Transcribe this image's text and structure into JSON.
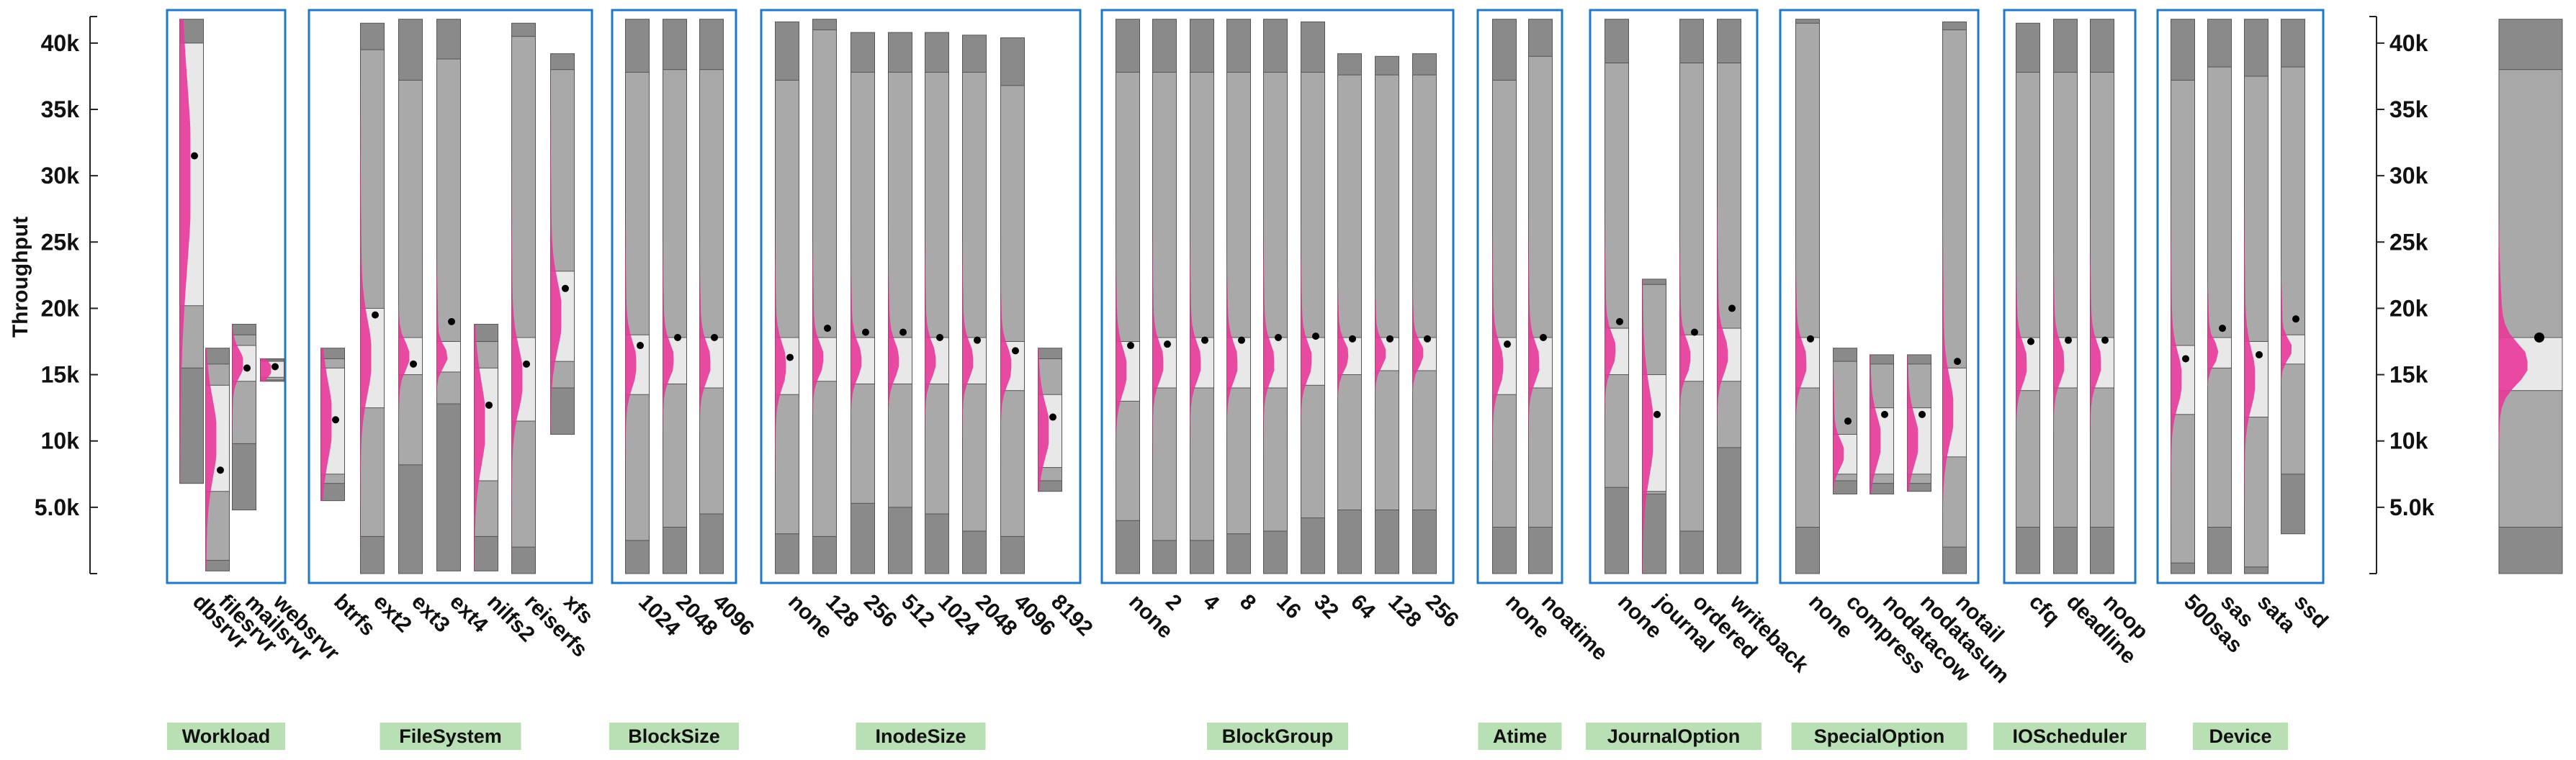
{
  "chart_data": {
    "type": "boxplot",
    "ylabel": "Throughput",
    "ylim": [
      0,
      42000
    ],
    "yticks": [
      {
        "value": 5000,
        "label": "5.0k"
      },
      {
        "value": 10000,
        "label": "10k"
      },
      {
        "value": 15000,
        "label": "15k"
      },
      {
        "value": 20000,
        "label": "20k"
      },
      {
        "value": 25000,
        "label": "25k"
      },
      {
        "value": 30000,
        "label": "30k"
      },
      {
        "value": 35000,
        "label": "35k"
      },
      {
        "value": 40000,
        "label": "40k"
      }
    ],
    "colors": {
      "whisker_dark": "#8a8a8a",
      "box_mid": "#a9a9a9",
      "iqr_light": "#e8e8e8",
      "density": "#e8399a",
      "frame": "#1f78c8",
      "group_label_bg": "#b9e0b4",
      "mean_dot": "#000000"
    },
    "groups": [
      {
        "name": "Workload",
        "items": [
          {
            "label": "dbsrvr",
            "min": 6800,
            "max": 41800,
            "p10": 15500,
            "p90": 37500,
            "q1": 20200,
            "q3": 40000,
            "mean": 31500
          },
          {
            "label": "filesrvr",
            "min": 200,
            "max": 17000,
            "p10": 1000,
            "p90": 15800,
            "q1": 6200,
            "q3": 14200,
            "mean": 7800
          },
          {
            "label": "mailsrvr",
            "min": 4800,
            "max": 18800,
            "p10": 9800,
            "p90": 18000,
            "q1": 14500,
            "q3": 17200,
            "mean": 15500
          },
          {
            "label": "websrvr",
            "min": 14500,
            "max": 16200,
            "p10": 14600,
            "p90": 16100,
            "q1": 14800,
            "q3": 16000,
            "mean": 15600
          }
        ]
      },
      {
        "name": "FileSystem",
        "items": [
          {
            "label": "btrfs",
            "min": 5500,
            "max": 17000,
            "p10": 6800,
            "p90": 16200,
            "q1": 7500,
            "q3": 15500,
            "mean": 11600
          },
          {
            "label": "ext2",
            "min": 0,
            "max": 41500,
            "p10": 2800,
            "p90": 39500,
            "q1": 12500,
            "q3": 20000,
            "mean": 19500
          },
          {
            "label": "ext3",
            "min": 0,
            "max": 41800,
            "p10": 8200,
            "p90": 37200,
            "q1": 15000,
            "q3": 17800,
            "mean": 15800
          },
          {
            "label": "ext4",
            "min": 200,
            "max": 41800,
            "p10": 12800,
            "p90": 38800,
            "q1": 15200,
            "q3": 17500,
            "mean": 19000
          },
          {
            "label": "nilfs2",
            "min": 200,
            "max": 18800,
            "p10": 2800,
            "p90": 17500,
            "q1": 7000,
            "q3": 15500,
            "mean": 12700
          },
          {
            "label": "reiserfs",
            "min": 0,
            "max": 41500,
            "p10": 2000,
            "p90": 40500,
            "q1": 11500,
            "q3": 17800,
            "mean": 15800
          },
          {
            "label": "xfs",
            "min": 10500,
            "max": 39200,
            "p10": 14000,
            "p90": 38000,
            "q1": 16000,
            "q3": 22800,
            "mean": 21500
          }
        ]
      },
      {
        "name": "BlockSize",
        "items": [
          {
            "label": "1024",
            "min": 0,
            "max": 41800,
            "p10": 2500,
            "p90": 37800,
            "q1": 13500,
            "q3": 18000,
            "mean": 17200
          },
          {
            "label": "2048",
            "min": 0,
            "max": 41800,
            "p10": 3500,
            "p90": 38000,
            "q1": 14300,
            "q3": 17800,
            "mean": 17800
          },
          {
            "label": "4096",
            "min": 0,
            "max": 41800,
            "p10": 4500,
            "p90": 38000,
            "q1": 14000,
            "q3": 17800,
            "mean": 17800
          }
        ]
      },
      {
        "name": "InodeSize",
        "items": [
          {
            "label": "none",
            "min": 0,
            "max": 41600,
            "p10": 3000,
            "p90": 37200,
            "q1": 13500,
            "q3": 17800,
            "mean": 16300
          },
          {
            "label": "128",
            "min": 0,
            "max": 41800,
            "p10": 2800,
            "p90": 41000,
            "q1": 14500,
            "q3": 17800,
            "mean": 18500
          },
          {
            "label": "256",
            "min": 0,
            "max": 40800,
            "p10": 5300,
            "p90": 37800,
            "q1": 14300,
            "q3": 17800,
            "mean": 18200
          },
          {
            "label": "512",
            "min": 0,
            "max": 40800,
            "p10": 5000,
            "p90": 37800,
            "q1": 14300,
            "q3": 17800,
            "mean": 18200
          },
          {
            "label": "1024",
            "min": 0,
            "max": 40800,
            "p10": 4500,
            "p90": 37800,
            "q1": 14300,
            "q3": 17800,
            "mean": 17800
          },
          {
            "label": "2048",
            "min": 0,
            "max": 40600,
            "p10": 3200,
            "p90": 37800,
            "q1": 14300,
            "q3": 17800,
            "mean": 17600
          },
          {
            "label": "4096",
            "min": 0,
            "max": 40400,
            "p10": 2800,
            "p90": 36800,
            "q1": 13800,
            "q3": 17500,
            "mean": 16800
          },
          {
            "label": "8192",
            "min": 6200,
            "max": 17000,
            "p10": 7000,
            "p90": 16200,
            "q1": 8000,
            "q3": 13500,
            "mean": 11800
          }
        ]
      },
      {
        "name": "BlockGroup",
        "items": [
          {
            "label": "none",
            "min": 0,
            "max": 41800,
            "p10": 4000,
            "p90": 37800,
            "q1": 13000,
            "q3": 17500,
            "mean": 17200
          },
          {
            "label": "2",
            "min": 0,
            "max": 41800,
            "p10": 2500,
            "p90": 37800,
            "q1": 14000,
            "q3": 17800,
            "mean": 17300
          },
          {
            "label": "4",
            "min": 0,
            "max": 41800,
            "p10": 2500,
            "p90": 37800,
            "q1": 14000,
            "q3": 17800,
            "mean": 17600
          },
          {
            "label": "8",
            "min": 0,
            "max": 41800,
            "p10": 3000,
            "p90": 37800,
            "q1": 14000,
            "q3": 17800,
            "mean": 17600
          },
          {
            "label": "16",
            "min": 0,
            "max": 41800,
            "p10": 3200,
            "p90": 37800,
            "q1": 14000,
            "q3": 17800,
            "mean": 17800
          },
          {
            "label": "32",
            "min": 0,
            "max": 41600,
            "p10": 4200,
            "p90": 37800,
            "q1": 14200,
            "q3": 17800,
            "mean": 17900
          },
          {
            "label": "64",
            "min": 0,
            "max": 39200,
            "p10": 4800,
            "p90": 37600,
            "q1": 15000,
            "q3": 17800,
            "mean": 17700
          },
          {
            "label": "128",
            "min": 0,
            "max": 39000,
            "p10": 4800,
            "p90": 37600,
            "q1": 15300,
            "q3": 17800,
            "mean": 17700
          },
          {
            "label": "256",
            "min": 0,
            "max": 39200,
            "p10": 4800,
            "p90": 37600,
            "q1": 15300,
            "q3": 17800,
            "mean": 17700
          }
        ]
      },
      {
        "name": "Atime",
        "items": [
          {
            "label": "none",
            "min": 0,
            "max": 41800,
            "p10": 3500,
            "p90": 37200,
            "q1": 13500,
            "q3": 17800,
            "mean": 17300
          },
          {
            "label": "noatime",
            "min": 0,
            "max": 41800,
            "p10": 3500,
            "p90": 39000,
            "q1": 14000,
            "q3": 17800,
            "mean": 17800
          }
        ]
      },
      {
        "name": "JournalOption",
        "items": [
          {
            "label": "none",
            "min": 0,
            "max": 41800,
            "p10": 6500,
            "p90": 38500,
            "q1": 15000,
            "q3": 18500,
            "mean": 19000
          },
          {
            "label": "journal",
            "min": 0,
            "max": 22200,
            "p10": 6000,
            "p90": 21800,
            "q1": 6200,
            "q3": 15000,
            "mean": 12000
          },
          {
            "label": "ordered",
            "min": 0,
            "max": 41800,
            "p10": 3200,
            "p90": 38500,
            "q1": 14500,
            "q3": 18000,
            "mean": 18200
          },
          {
            "label": "writeback",
            "min": 0,
            "max": 41800,
            "p10": 9500,
            "p90": 38500,
            "q1": 14500,
            "q3": 18500,
            "mean": 20000
          }
        ]
      },
      {
        "name": "SpecialOption",
        "items": [
          {
            "label": "none",
            "min": 0,
            "max": 41800,
            "p10": 3500,
            "p90": 41500,
            "q1": 14000,
            "q3": 17800,
            "mean": 17700
          },
          {
            "label": "compress",
            "min": 6000,
            "max": 17000,
            "p10": 7000,
            "p90": 16000,
            "q1": 7500,
            "q3": 10500,
            "mean": 11500
          },
          {
            "label": "nodatacow",
            "min": 6000,
            "max": 16500,
            "p10": 6800,
            "p90": 15800,
            "q1": 7500,
            "q3": 12500,
            "mean": 12000
          },
          {
            "label": "nodatasum",
            "min": 6200,
            "max": 16500,
            "p10": 6800,
            "p90": 15800,
            "q1": 7500,
            "q3": 12500,
            "mean": 12000
          },
          {
            "label": "notail",
            "min": 0,
            "max": 41600,
            "p10": 2000,
            "p90": 41000,
            "q1": 8800,
            "q3": 15500,
            "mean": 16000
          }
        ]
      },
      {
        "name": "IOScheduler",
        "items": [
          {
            "label": "cfq",
            "min": 0,
            "max": 41500,
            "p10": 3500,
            "p90": 37800,
            "q1": 13800,
            "q3": 17800,
            "mean": 17500
          },
          {
            "label": "deadline",
            "min": 0,
            "max": 41800,
            "p10": 3500,
            "p90": 37800,
            "q1": 14000,
            "q3": 17800,
            "mean": 17600
          },
          {
            "label": "noop",
            "min": 0,
            "max": 41800,
            "p10": 3500,
            "p90": 37800,
            "q1": 14000,
            "q3": 17800,
            "mean": 17600
          }
        ]
      },
      {
        "name": "Device",
        "items": [
          {
            "label": "500sas",
            "min": 0,
            "max": 41800,
            "p10": 800,
            "p90": 37200,
            "q1": 12000,
            "q3": 17200,
            "mean": 16200
          },
          {
            "label": "sas",
            "min": 0,
            "max": 41800,
            "p10": 3500,
            "p90": 38200,
            "q1": 15500,
            "q3": 17800,
            "mean": 18500
          },
          {
            "label": "sata",
            "min": 0,
            "max": 41800,
            "p10": 500,
            "p90": 37500,
            "q1": 11800,
            "q3": 17500,
            "mean": 16500
          },
          {
            "label": "ssd",
            "min": 3000,
            "max": 41800,
            "p10": 7500,
            "p90": 38200,
            "q1": 15800,
            "q3": 18000,
            "mean": 19200
          }
        ]
      }
    ],
    "overall": {
      "min": 0,
      "max": 41800,
      "p10": 3500,
      "p90": 38000,
      "q1": 13800,
      "q3": 17800,
      "mean": 17800
    }
  }
}
